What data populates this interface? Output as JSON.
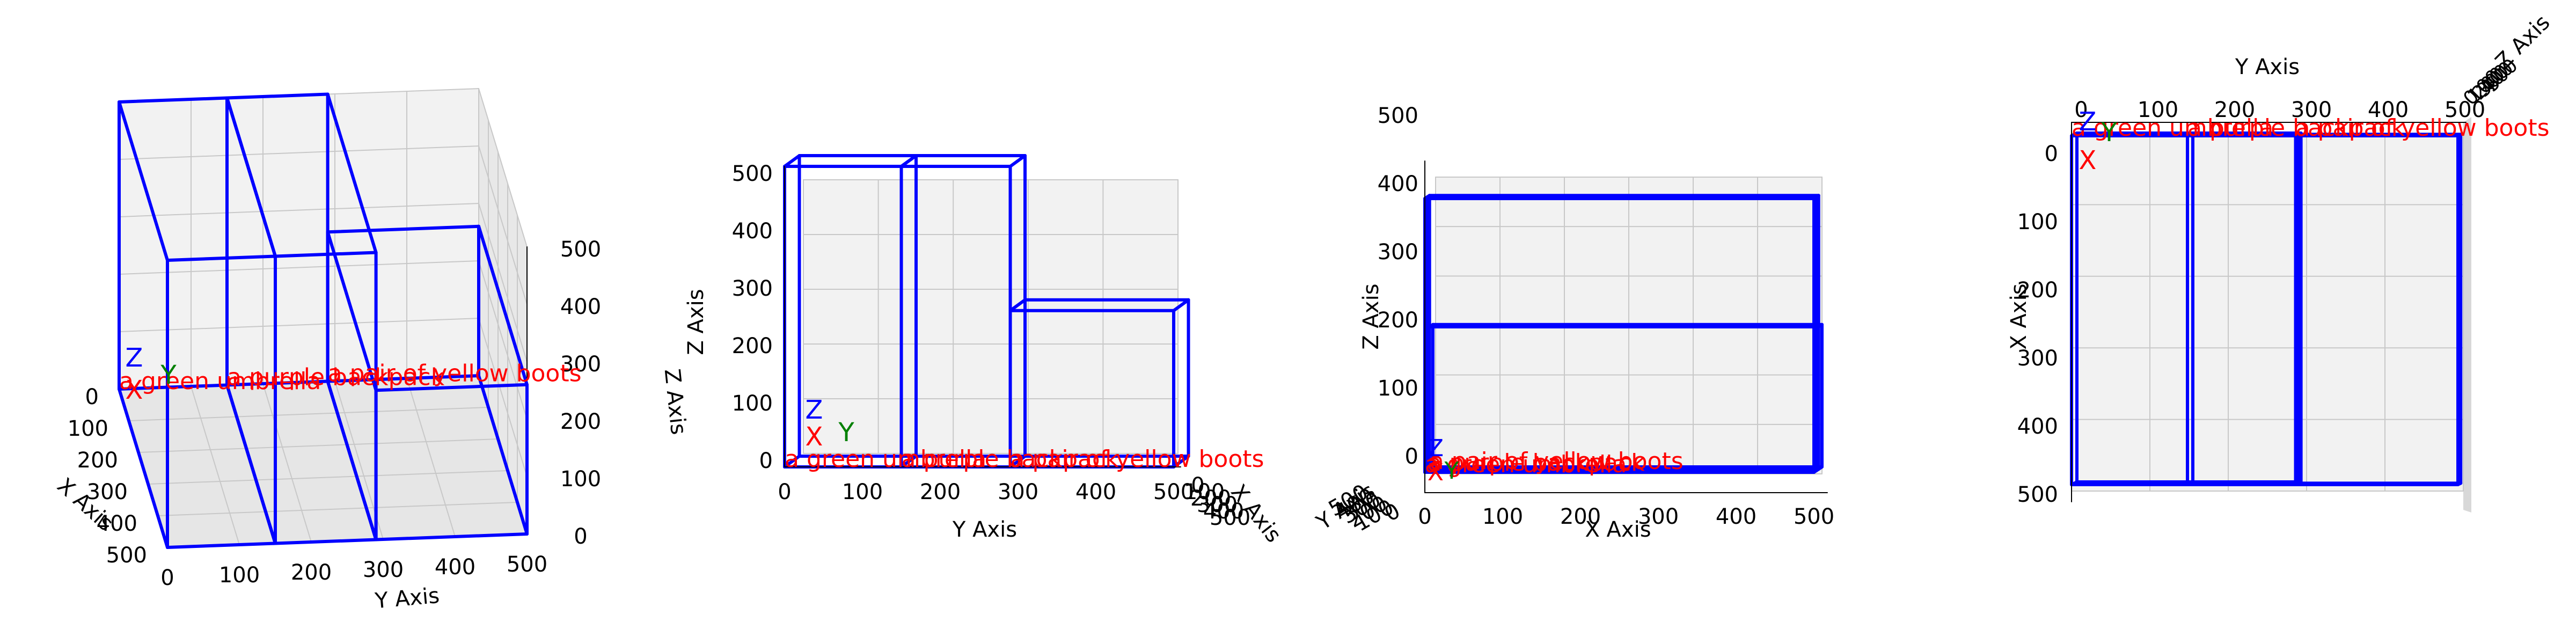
{
  "chart_data": {
    "type": "3d-box-layout",
    "units_note": "",
    "boxes": [
      {
        "label": "a green umbrella",
        "x": [
          0,
          500
        ],
        "y": [
          0,
          150
        ],
        "z": [
          0,
          500
        ]
      },
      {
        "label": "a purple backpack",
        "x": [
          0,
          500
        ],
        "y": [
          150,
          290
        ],
        "z": [
          0,
          500
        ]
      },
      {
        "label": "a pair of yellow boots",
        "x": [
          0,
          500
        ],
        "y": [
          290,
          500
        ],
        "z": [
          0,
          260
        ]
      }
    ],
    "origin_markers": {
      "x": "X",
      "y": "Y",
      "z": "Z"
    },
    "colors": {
      "box_edge": "#0000ff",
      "label": "#ff0000",
      "marker_x": "#ff0000",
      "marker_y": "#008000",
      "marker_z": "#0000ff",
      "pane": "#f2f2f2",
      "grid": "#c8c8c8"
    },
    "views": [
      {
        "name": "perspective",
        "xlabel": "X Axis",
        "ylabel": "Y Axis",
        "zlabel": "Z Axis",
        "xticks": [
          "0",
          "100",
          "200",
          "300",
          "400",
          "500"
        ],
        "yticks": [
          "0",
          "100",
          "200",
          "300",
          "400",
          "500"
        ],
        "zticks": [
          "0",
          "100",
          "200",
          "300",
          "400",
          "500"
        ],
        "xlim": [
          0,
          500
        ],
        "ylim": [
          0,
          500
        ],
        "zlim": [
          0,
          500
        ]
      },
      {
        "name": "front",
        "xlabel": "Y Axis",
        "ylabel": "Z Axis",
        "zlabel": "X Axis",
        "xticks": [
          "0",
          "100",
          "200",
          "300",
          "400",
          "500"
        ],
        "yticks": [
          "0",
          "100",
          "200",
          "300",
          "400",
          "500"
        ],
        "zticks": [
          "0",
          "100",
          "200",
          "300",
          "400",
          "500"
        ],
        "xlim": [
          0,
          500
        ],
        "ylim": [
          0,
          500
        ]
      },
      {
        "name": "side",
        "xlabel": "X Axis",
        "ylabel": "Z Axis",
        "zlabel": "Y Axis",
        "xticks": [
          "0",
          "100",
          "200",
          "300",
          "400",
          "500"
        ],
        "yticks": [
          "0",
          "100",
          "200",
          "300",
          "400",
          "500"
        ],
        "zticks": [
          "0",
          "100",
          "200",
          "300",
          "400",
          "500"
        ],
        "xlim": [
          0,
          500
        ],
        "ylim": [
          0,
          500
        ]
      },
      {
        "name": "top",
        "xlabel": "Y Axis",
        "ylabel": "X Axis",
        "zlabel": "Z Axis",
        "xticks": [
          "0",
          "100",
          "200",
          "300",
          "400",
          "500"
        ],
        "yticks": [
          "0",
          "100",
          "200",
          "300",
          "400",
          "500"
        ],
        "zticks": [
          "0",
          "100",
          "200",
          "300",
          "400",
          "500"
        ],
        "xlim": [
          0,
          500
        ],
        "ylim": [
          0,
          500
        ]
      }
    ]
  }
}
